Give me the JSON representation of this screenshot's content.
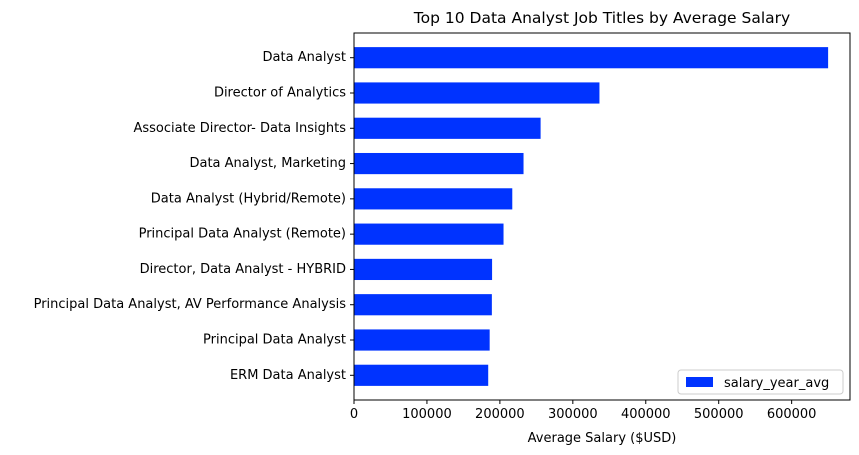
{
  "chart_data": {
    "type": "bar",
    "orientation": "horizontal",
    "title": "Top 10 Data Analyst Job Titles by Average Salary",
    "xlabel": "Average Salary ($USD)",
    "ylabel": "",
    "xlim": [
      0,
      680000
    ],
    "xticks": [
      0,
      100000,
      200000,
      300000,
      400000,
      500000,
      600000
    ],
    "xtick_labels": [
      "0",
      "100000",
      "200000",
      "300000",
      "400000",
      "500000",
      "600000"
    ],
    "categories": [
      "Data Analyst",
      "Director of Analytics",
      "Associate Director- Data Insights",
      "Data Analyst, Marketing",
      "Data Analyst (Hybrid/Remote)",
      "Principal Data Analyst (Remote)",
      "Director, Data Analyst - HYBRID",
      "Principal Data Analyst, AV Performance Analysis",
      "Principal Data Analyst",
      "ERM Data Analyst"
    ],
    "series": [
      {
        "name": "salary_year_avg",
        "color": "#0033ff",
        "values": [
          650000,
          336500,
          255830,
          232423,
          217000,
          205000,
          189309,
          189000,
          186000,
          184000
        ]
      }
    ],
    "grid": false,
    "legend": "lower right"
  }
}
